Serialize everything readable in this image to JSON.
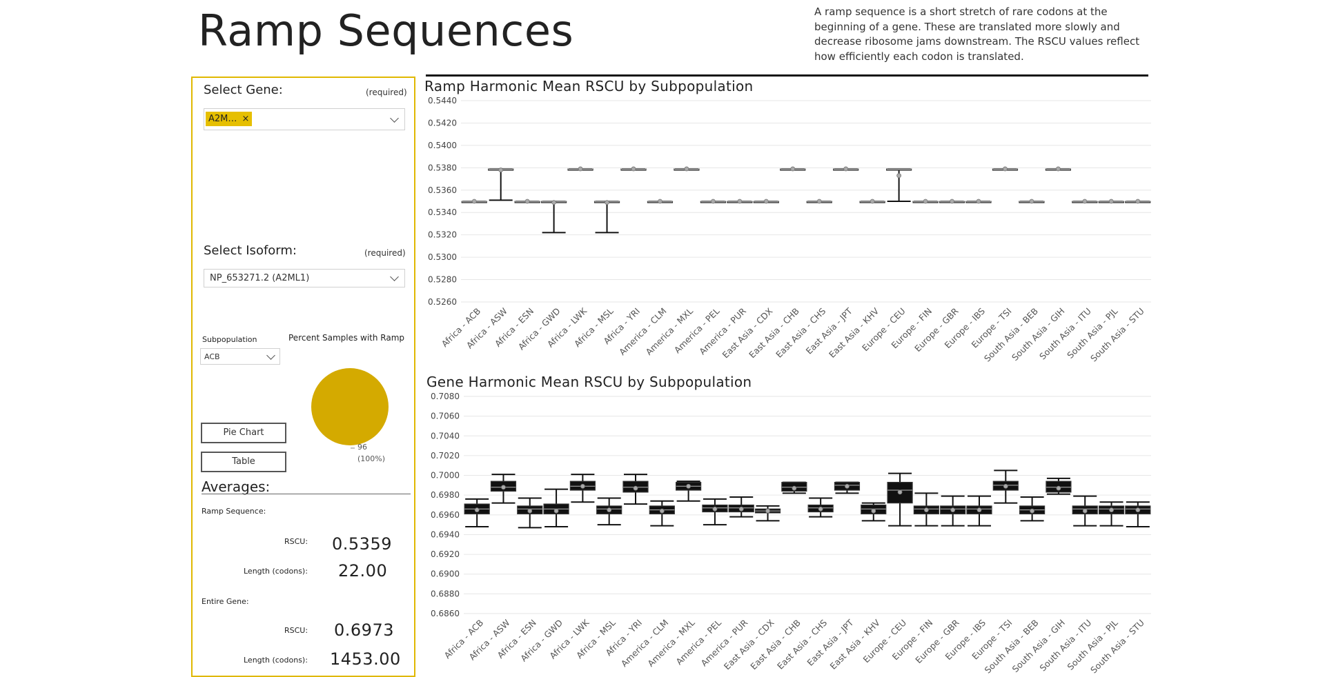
{
  "page": {
    "title": "Ramp Sequences",
    "description": "A ramp sequence is a short stretch of rare codons at the beginning of a gene. These are translated more slowly and decrease ribosome jams downstream. The RSCU values reflect how efficiently each codon is translated."
  },
  "filters": {
    "gene_label": "Select Gene:",
    "gene_required": "(required)",
    "gene_chip": "A2M…",
    "gene_chip_remove": "×",
    "isoform_label": "Select Isoform:",
    "isoform_required": "(required)",
    "isoform_value": "NP_653271.2 (A2ML1)",
    "subpop_label": "Subpopulation",
    "subpop_value": "ACB",
    "pie_title": "Percent Samples with Ramp",
    "pie_label_count": "96",
    "pie_label_pct": "(100%)",
    "pie_fraction": 1.0,
    "pie_color": "#d4aa00",
    "pie_chart_button": "Pie Chart",
    "table_button": "Table"
  },
  "averages": {
    "heading": "Averages:",
    "ramp_heading": "Ramp Sequence:",
    "ramp_rscu_label": "RSCU:",
    "ramp_rscu_value": "0.5359",
    "ramp_length_label": "Length (codons):",
    "ramp_length_value": "22.00",
    "gene_heading": "Entire Gene:",
    "gene_rscu_label": "RSCU:",
    "gene_rscu_value": "0.6973",
    "gene_length_label": "Length (codons):",
    "gene_length_value": "1453.00"
  },
  "colors": {
    "accent": "#e0b800",
    "pie": "#d4aa00",
    "grid": "#e6e6e6"
  },
  "chart_data": [
    {
      "type": "box",
      "title": "Ramp Harmonic Mean RSCU by Subpopulation",
      "ylim": [
        0.526,
        0.544
      ],
      "yticks": [
        "0.5260",
        "0.5280",
        "0.5300",
        "0.5320",
        "0.5340",
        "0.5360",
        "0.5380",
        "0.5400",
        "0.5420",
        "0.5440"
      ],
      "grid": true,
      "categories": [
        "Africa - ACB",
        "Africa - ASW",
        "Africa - ESN",
        "Africa - GWD",
        "Africa - LWK",
        "Africa - MSL",
        "Africa - YRI",
        "America - CLM",
        "America - MXL",
        "America - PEL",
        "America - PUR",
        "East Asia - CDX",
        "East Asia - CHB",
        "East Asia - CHS",
        "East Asia - JPT",
        "East Asia - KHV",
        "Europe - CEU",
        "Europe - FIN",
        "Europe - GBR",
        "Europe - IBS",
        "Europe - TSI",
        "South Asia - BEB",
        "South Asia - GIH",
        "South Asia - ITU",
        "South Asia - PJL",
        "South Asia - STU"
      ],
      "boxes": [
        {
          "min": 0.535,
          "q1": 0.535,
          "median": 0.535,
          "q3": 0.535,
          "max": 0.535,
          "mean": 0.535
        },
        {
          "min": 0.5351,
          "q1": 0.5379,
          "median": 0.5379,
          "q3": 0.5379,
          "max": 0.5379,
          "mean": 0.5378
        },
        {
          "min": 0.535,
          "q1": 0.535,
          "median": 0.535,
          "q3": 0.535,
          "max": 0.535,
          "mean": 0.535
        },
        {
          "min": 0.5322,
          "q1": 0.535,
          "median": 0.535,
          "q3": 0.535,
          "max": 0.535,
          "mean": 0.5349
        },
        {
          "min": 0.5379,
          "q1": 0.5379,
          "median": 0.5379,
          "q3": 0.5379,
          "max": 0.5379,
          "mean": 0.5379
        },
        {
          "min": 0.5322,
          "q1": 0.535,
          "median": 0.535,
          "q3": 0.535,
          "max": 0.535,
          "mean": 0.5349
        },
        {
          "min": 0.5379,
          "q1": 0.5379,
          "median": 0.5379,
          "q3": 0.5379,
          "max": 0.5379,
          "mean": 0.5379
        },
        {
          "min": 0.535,
          "q1": 0.535,
          "median": 0.535,
          "q3": 0.535,
          "max": 0.535,
          "mean": 0.535
        },
        {
          "min": 0.5379,
          "q1": 0.5379,
          "median": 0.5379,
          "q3": 0.5379,
          "max": 0.5379,
          "mean": 0.5379
        },
        {
          "min": 0.535,
          "q1": 0.535,
          "median": 0.535,
          "q3": 0.535,
          "max": 0.535,
          "mean": 0.535
        },
        {
          "min": 0.535,
          "q1": 0.535,
          "median": 0.535,
          "q3": 0.535,
          "max": 0.535,
          "mean": 0.535
        },
        {
          "min": 0.535,
          "q1": 0.535,
          "median": 0.535,
          "q3": 0.535,
          "max": 0.535,
          "mean": 0.535
        },
        {
          "min": 0.5379,
          "q1": 0.5379,
          "median": 0.5379,
          "q3": 0.5379,
          "max": 0.5379,
          "mean": 0.5379
        },
        {
          "min": 0.535,
          "q1": 0.535,
          "median": 0.535,
          "q3": 0.535,
          "max": 0.535,
          "mean": 0.535
        },
        {
          "min": 0.5379,
          "q1": 0.5379,
          "median": 0.5379,
          "q3": 0.5379,
          "max": 0.5379,
          "mean": 0.5379
        },
        {
          "min": 0.535,
          "q1": 0.535,
          "median": 0.535,
          "q3": 0.535,
          "max": 0.535,
          "mean": 0.535
        },
        {
          "min": 0.535,
          "q1": 0.5379,
          "median": 0.5379,
          "q3": 0.5379,
          "max": 0.5379,
          "mean": 0.5373
        },
        {
          "min": 0.535,
          "q1": 0.535,
          "median": 0.535,
          "q3": 0.535,
          "max": 0.535,
          "mean": 0.535
        },
        {
          "min": 0.535,
          "q1": 0.535,
          "median": 0.535,
          "q3": 0.535,
          "max": 0.535,
          "mean": 0.535
        },
        {
          "min": 0.535,
          "q1": 0.535,
          "median": 0.535,
          "q3": 0.535,
          "max": 0.535,
          "mean": 0.535
        },
        {
          "min": 0.5379,
          "q1": 0.5379,
          "median": 0.5379,
          "q3": 0.5379,
          "max": 0.5379,
          "mean": 0.5379
        },
        {
          "min": 0.535,
          "q1": 0.535,
          "median": 0.535,
          "q3": 0.535,
          "max": 0.535,
          "mean": 0.535
        },
        {
          "min": 0.5379,
          "q1": 0.5379,
          "median": 0.5379,
          "q3": 0.5379,
          "max": 0.5379,
          "mean": 0.5379
        },
        {
          "min": 0.535,
          "q1": 0.535,
          "median": 0.535,
          "q3": 0.535,
          "max": 0.535,
          "mean": 0.535
        },
        {
          "min": 0.535,
          "q1": 0.535,
          "median": 0.535,
          "q3": 0.535,
          "max": 0.535,
          "mean": 0.535
        },
        {
          "min": 0.535,
          "q1": 0.535,
          "median": 0.535,
          "q3": 0.535,
          "max": 0.535,
          "mean": 0.535
        }
      ]
    },
    {
      "type": "box",
      "title": "Gene Harmonic Mean RSCU by Subpopulation",
      "ylim": [
        0.686,
        0.708
      ],
      "yticks": [
        "0.6860",
        "0.6880",
        "0.6900",
        "0.6920",
        "0.6940",
        "0.6960",
        "0.6980",
        "0.7000",
        "0.7020",
        "0.7040",
        "0.7060",
        "0.7080"
      ],
      "grid": true,
      "categories": [
        "Africa - ACB",
        "Africa - ASW",
        "Africa - ESN",
        "Africa - GWD",
        "Africa - LWK",
        "Africa - MSL",
        "Africa - YRI",
        "America - CLM",
        "America - MXL",
        "America - PEL",
        "America - PUR",
        "East Asia - CDX",
        "East Asia - CHB",
        "East Asia - CHS",
        "East Asia - JPT",
        "East Asia - KHV",
        "Europe - CEU",
        "Europe - FIN",
        "Europe - GBR",
        "Europe - IBS",
        "Europe - TSI",
        "South Asia - BEB",
        "South Asia - GIH",
        "South Asia - ITU",
        "South Asia - PJL",
        "South Asia - STU"
      ],
      "boxes": [
        {
          "min": 0.6948,
          "q1": 0.6961,
          "median": 0.6966,
          "q3": 0.6971,
          "max": 0.6976,
          "mean": 0.6965
        },
        {
          "min": 0.6972,
          "q1": 0.6984,
          "median": 0.6988,
          "q3": 0.6994,
          "max": 0.7001,
          "mean": 0.6988
        },
        {
          "min": 0.6947,
          "q1": 0.6961,
          "median": 0.6966,
          "q3": 0.6969,
          "max": 0.6977,
          "mean": 0.6964
        },
        {
          "min": 0.6948,
          "q1": 0.6961,
          "median": 0.6966,
          "q3": 0.6971,
          "max": 0.6986,
          "mean": 0.6964
        },
        {
          "min": 0.6973,
          "q1": 0.6985,
          "median": 0.6989,
          "q3": 0.6994,
          "max": 0.7001,
          "mean": 0.6989
        },
        {
          "min": 0.695,
          "q1": 0.6961,
          "median": 0.6966,
          "q3": 0.6969,
          "max": 0.6977,
          "mean": 0.6965
        },
        {
          "min": 0.6971,
          "q1": 0.6983,
          "median": 0.6988,
          "q3": 0.6994,
          "max": 0.7001,
          "mean": 0.6987
        },
        {
          "min": 0.6949,
          "q1": 0.6961,
          "median": 0.6965,
          "q3": 0.6969,
          "max": 0.6974,
          "mean": 0.6964
        },
        {
          "min": 0.6974,
          "q1": 0.6985,
          "median": 0.6989,
          "q3": 0.6993,
          "max": 0.6994,
          "mean": 0.6989
        },
        {
          "min": 0.695,
          "q1": 0.6963,
          "median": 0.6967,
          "q3": 0.697,
          "max": 0.6976,
          "mean": 0.6966
        },
        {
          "min": 0.6958,
          "q1": 0.6963,
          "median": 0.6967,
          "q3": 0.697,
          "max": 0.6978,
          "mean": 0.6966
        },
        {
          "min": 0.6954,
          "q1": 0.6962,
          "median": 0.6964,
          "q3": 0.6966,
          "max": 0.6969,
          "mean": 0.6964
        },
        {
          "min": 0.6982,
          "q1": 0.6984,
          "median": 0.6988,
          "q3": 0.6993,
          "max": 0.6993,
          "mean": 0.6987
        },
        {
          "min": 0.6958,
          "q1": 0.6963,
          "median": 0.6967,
          "q3": 0.697,
          "max": 0.6977,
          "mean": 0.6966
        },
        {
          "min": 0.6982,
          "q1": 0.6985,
          "median": 0.699,
          "q3": 0.6993,
          "max": 0.6993,
          "mean": 0.6989
        },
        {
          "min": 0.6954,
          "q1": 0.6961,
          "median": 0.6966,
          "q3": 0.697,
          "max": 0.6972,
          "mean": 0.6964
        },
        {
          "min": 0.6949,
          "q1": 0.6972,
          "median": 0.6985,
          "q3": 0.6993,
          "max": 0.7002,
          "mean": 0.6983
        },
        {
          "min": 0.6949,
          "q1": 0.6961,
          "median": 0.6966,
          "q3": 0.6969,
          "max": 0.6982,
          "mean": 0.6965
        },
        {
          "min": 0.6949,
          "q1": 0.6961,
          "median": 0.6966,
          "q3": 0.6969,
          "max": 0.6979,
          "mean": 0.6965
        },
        {
          "min": 0.6949,
          "q1": 0.6961,
          "median": 0.6966,
          "q3": 0.6969,
          "max": 0.6979,
          "mean": 0.6965
        },
        {
          "min": 0.6972,
          "q1": 0.6985,
          "median": 0.699,
          "q3": 0.6994,
          "max": 0.7005,
          "mean": 0.6989
        },
        {
          "min": 0.6954,
          "q1": 0.6961,
          "median": 0.6965,
          "q3": 0.6969,
          "max": 0.6978,
          "mean": 0.6964
        },
        {
          "min": 0.6981,
          "q1": 0.6983,
          "median": 0.6988,
          "q3": 0.6994,
          "max": 0.6997,
          "mean": 0.6987
        },
        {
          "min": 0.6949,
          "q1": 0.6961,
          "median": 0.6966,
          "q3": 0.6969,
          "max": 0.6979,
          "mean": 0.6964
        },
        {
          "min": 0.6949,
          "q1": 0.6961,
          "median": 0.6966,
          "q3": 0.6969,
          "max": 0.6973,
          "mean": 0.6965
        },
        {
          "min": 0.6948,
          "q1": 0.6961,
          "median": 0.6966,
          "q3": 0.6969,
          "max": 0.6973,
          "mean": 0.6965
        }
      ]
    }
  ]
}
